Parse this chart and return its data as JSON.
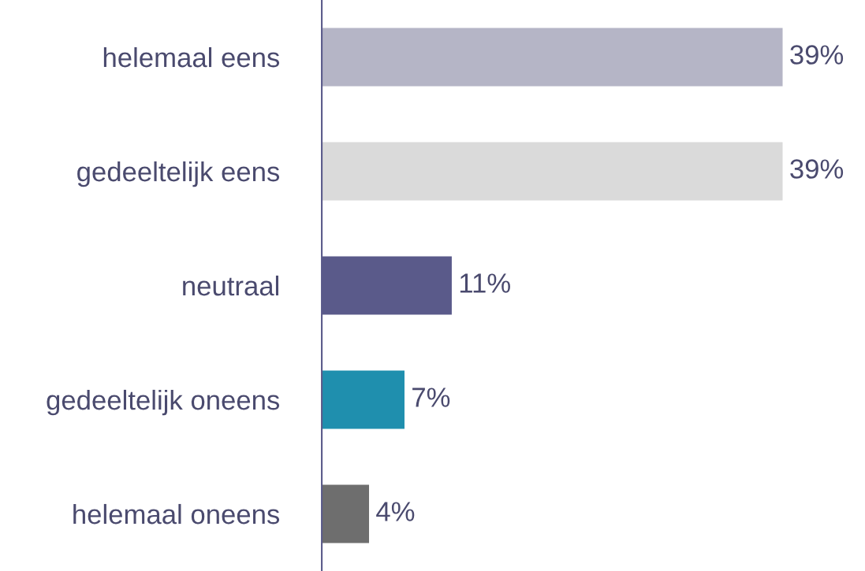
{
  "chart_data": {
    "type": "bar",
    "orientation": "horizontal",
    "categories": [
      "helemaal eens",
      "gedeeltelijk eens",
      "neutraal",
      "gedeeltelijk oneens",
      "helemaal oneens"
    ],
    "values": [
      39,
      39,
      11,
      7,
      4
    ],
    "value_labels": [
      "39%",
      "39%",
      "11%",
      "7%",
      "4%"
    ],
    "colors": [
      "#b5b5c6",
      "#dadada",
      "#5a5a8a",
      "#1f8fae",
      "#6e6e6e"
    ],
    "grid": false,
    "legend": false
  }
}
